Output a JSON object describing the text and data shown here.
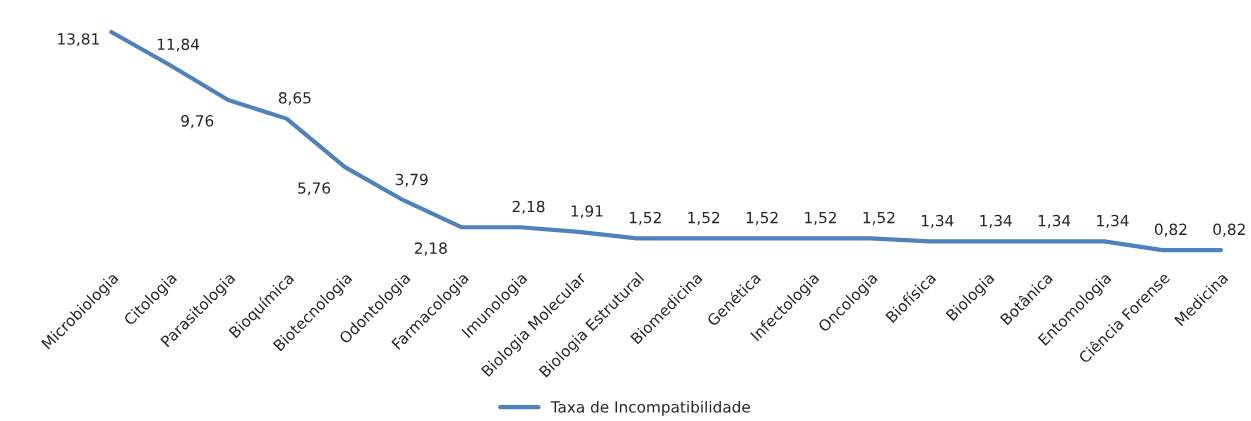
{
  "chart_data": {
    "type": "line",
    "categories": [
      "Microbiologia",
      "Citologia",
      "Parasitologia",
      "Bioquímica",
      "Biotecnologia",
      "Odontologia",
      "Farmacologia",
      "Imunologia",
      "Biologia Molecular",
      "Biologia Estrutural",
      "Biomedicina",
      "Genética",
      "Infectologia",
      "Oncologia",
      "Biofísica",
      "Biologia",
      "Botânica",
      "Entomologia",
      "Ciência Forense",
      "Medicina"
    ],
    "series": [
      {
        "name": "Taxa de Incompatibilidade",
        "color": "#4f81bd",
        "values": [
          13.81,
          11.84,
          9.76,
          8.65,
          5.76,
          3.79,
          2.18,
          2.18,
          1.91,
          1.52,
          1.52,
          1.52,
          1.52,
          1.52,
          1.34,
          1.34,
          1.34,
          1.34,
          0.82,
          0.82
        ],
        "value_labels": [
          "13,81",
          "11,84",
          "9,76",
          "8,65",
          "5,76",
          "3,79",
          "2,18",
          "2,18",
          "1,91",
          "1,52",
          "1,52",
          "1,52",
          "1,52",
          "1,52",
          "1,34",
          "1,34",
          "1,34",
          "1,34",
          "0,82",
          "0,82"
        ]
      }
    ],
    "legend": "bottom",
    "tick_labels": "x",
    "grid": false,
    "marker": "none",
    "line_style": "solid"
  }
}
